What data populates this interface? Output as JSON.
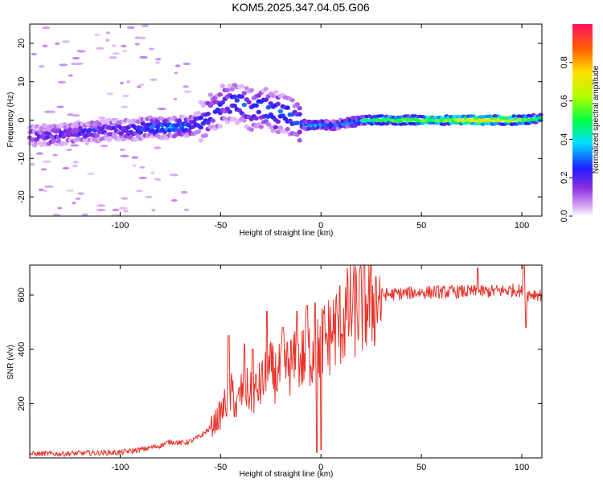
{
  "title": "KOM5.2025.347.04.05.G06",
  "chart_data": [
    {
      "type": "heatmap",
      "name": "spectrogram",
      "xlabel": "Height of straight line (km)",
      "ylabel": "Frequency (Hz)",
      "xlim": [
        -145,
        110
      ],
      "ylim": [
        -25,
        25
      ],
      "xticks": [
        -100,
        -50,
        0,
        50,
        100
      ],
      "yticks": [
        -20,
        -10,
        0,
        10,
        20
      ],
      "trace": {
        "x": [
          -145,
          -135,
          -125,
          -115,
          -105,
          -95,
          -85,
          -75,
          -65,
          -58,
          -52,
          -46,
          -40,
          -34,
          -28,
          -22,
          -16,
          -10,
          -5,
          0,
          5,
          10,
          20,
          30,
          40,
          50,
          60,
          70,
          80,
          90,
          100,
          110
        ],
        "freq": [
          -4,
          -4,
          -3.5,
          -3,
          -2.5,
          -2.5,
          -2,
          -2,
          -1.5,
          0,
          3,
          4.5,
          4,
          2.5,
          3,
          2,
          1,
          -1,
          -1.5,
          -1,
          -1.5,
          -1,
          0,
          0,
          0,
          0,
          0,
          0,
          0,
          0,
          0,
          0.5
        ],
        "amplitude": [
          0.15,
          0.2,
          0.2,
          0.25,
          0.2,
          0.25,
          0.3,
          0.35,
          0.3,
          0.25,
          0.25,
          0.25,
          0.3,
          0.3,
          0.3,
          0.35,
          0.3,
          0.3,
          0.35,
          0.35,
          0.3,
          0.3,
          0.4,
          0.55,
          0.6,
          0.6,
          0.6,
          0.7,
          0.8,
          0.7,
          0.6,
          0.55
        ]
      },
      "colorbar": {
        "label": "Normalized spectral amplitude",
        "ticks": [
          0.0,
          0.2,
          0.4,
          0.6,
          0.8
        ],
        "range": [
          0,
          1
        ]
      }
    },
    {
      "type": "line",
      "name": "snr",
      "xlabel": "Height of straight line (km)",
      "ylabel": "SNR (v/v)",
      "xlim": [
        -145,
        110
      ],
      "ylim": [
        0,
        710
      ],
      "xticks": [
        -100,
        -50,
        0,
        50,
        100
      ],
      "yticks": [
        200,
        400,
        600
      ],
      "color": "#e8332a",
      "series": [
        {
          "name": "SNR",
          "x": [
            -145,
            -130,
            -115,
            -100,
            -90,
            -80,
            -75,
            -70,
            -65,
            -60,
            -55,
            -50,
            -47,
            -44,
            -42,
            -40,
            -37,
            -34,
            -31,
            -28,
            -25,
            -22,
            -19,
            -16,
            -13,
            -10,
            -7,
            -4,
            -2,
            0,
            3,
            6,
            10,
            15,
            20,
            25,
            30,
            40,
            50,
            60,
            70,
            80,
            90,
            98,
            102,
            106,
            110
          ],
          "y": [
            15,
            15,
            18,
            20,
            30,
            45,
            60,
            55,
            60,
            80,
            110,
            160,
            210,
            240,
            180,
            240,
            250,
            230,
            260,
            290,
            320,
            300,
            330,
            340,
            350,
            360,
            380,
            390,
            380,
            430,
            440,
            470,
            500,
            540,
            560,
            580,
            600,
            605,
            610,
            610,
            612,
            612,
            615,
            620,
            600,
            605,
            600
          ]
        }
      ],
      "spikes": [
        {
          "x": -46,
          "y": 450
        },
        {
          "x": -38,
          "y": 420
        },
        {
          "x": -34,
          "y": 400
        },
        {
          "x": -27,
          "y": 540
        },
        {
          "x": -19,
          "y": 480
        },
        {
          "x": -12,
          "y": 540
        },
        {
          "x": -7,
          "y": 560
        },
        {
          "x": -3,
          "y": 570
        },
        {
          "x": -2,
          "y": 20
        },
        {
          "x": 0,
          "y": 30
        },
        {
          "x": 78,
          "y": 700
        },
        {
          "x": 101,
          "y": 710
        },
        {
          "x": 102,
          "y": 480
        }
      ]
    }
  ]
}
